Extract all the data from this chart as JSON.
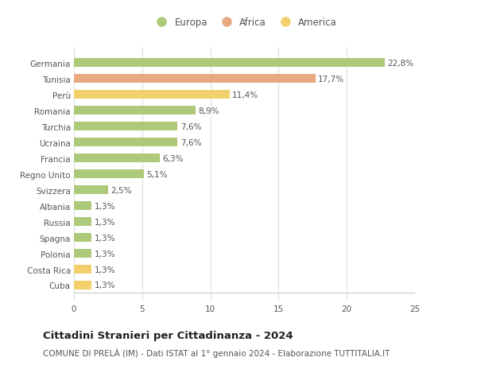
{
  "categories": [
    "Germania",
    "Tunisia",
    "Perù",
    "Romania",
    "Turchia",
    "Ucraina",
    "Francia",
    "Regno Unito",
    "Svizzera",
    "Albania",
    "Russia",
    "Spagna",
    "Polonia",
    "Costa Rica",
    "Cuba"
  ],
  "values": [
    22.8,
    17.7,
    11.4,
    8.9,
    7.6,
    7.6,
    6.3,
    5.1,
    2.5,
    1.3,
    1.3,
    1.3,
    1.3,
    1.3,
    1.3
  ],
  "labels": [
    "22,8%",
    "17,7%",
    "11,4%",
    "8,9%",
    "7,6%",
    "7,6%",
    "6,3%",
    "5,1%",
    "2,5%",
    "1,3%",
    "1,3%",
    "1,3%",
    "1,3%",
    "1,3%",
    "1,3%"
  ],
  "colors": [
    "#adc97a",
    "#e8a882",
    "#f2d06b",
    "#adc97a",
    "#adc97a",
    "#adc97a",
    "#adc97a",
    "#adc97a",
    "#adc97a",
    "#adc97a",
    "#adc97a",
    "#adc97a",
    "#adc97a",
    "#f2d06b",
    "#f2d06b"
  ],
  "legend": [
    {
      "label": "Europa",
      "color": "#adc97a"
    },
    {
      "label": "Africa",
      "color": "#e8a882"
    },
    {
      "label": "America",
      "color": "#f2d06b"
    }
  ],
  "xlim": [
    0,
    25
  ],
  "xticks": [
    0,
    5,
    10,
    15,
    20,
    25
  ],
  "title": "Cittadini Stranieri per Cittadinanza - 2024",
  "subtitle": "COMUNE DI PRELÀ (IM) - Dati ISTAT al 1° gennaio 2024 - Elaborazione TUTTITALIA.IT",
  "background_color": "#ffffff",
  "grid_color": "#e0e0e0",
  "bar_height": 0.55,
  "label_fontsize": 7.5,
  "tick_fontsize": 7.5,
  "title_fontsize": 9.5,
  "subtitle_fontsize": 7.5
}
